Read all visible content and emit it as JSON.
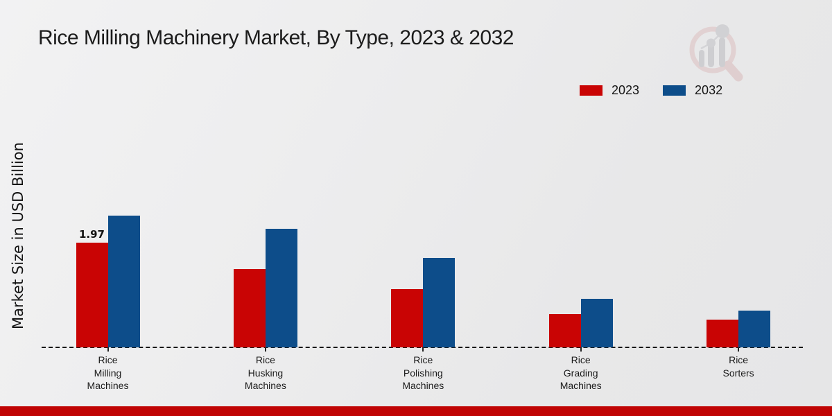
{
  "title": "Rice Milling Machinery Market, By Type, 2023 & 2032",
  "y_axis_label": "Market Size in USD Billion",
  "legend": [
    {
      "label": "2023",
      "color": "#c90404"
    },
    {
      "label": "2032",
      "color": "#0d4d8a"
    }
  ],
  "watermark_name": "market-research-future-logo",
  "footer": {
    "bar_color": "#c00404"
  },
  "chart_data": {
    "type": "bar",
    "title": "Rice Milling Machinery Market, By Type, 2023 & 2032",
    "xlabel": "",
    "ylabel": "Market Size in USD Billion",
    "unit": "USD Billion",
    "categories": [
      "Rice Milling Machines",
      "Rice Husking Machines",
      "Rice Polishing Machines",
      "Rice Grading Machines",
      "Rice Sorters"
    ],
    "categories_multiline": [
      [
        "Rice",
        "Milling",
        "Machines"
      ],
      [
        "Rice",
        "Husking",
        "Machines"
      ],
      [
        "Rice",
        "Polishing",
        "Machines"
      ],
      [
        "Rice",
        "Grading",
        "Machines"
      ],
      [
        "Rice",
        "Sorters"
      ]
    ],
    "series": [
      {
        "name": "2023",
        "color": "#c90404",
        "values": [
          1.97,
          1.47,
          1.1,
          0.63,
          0.52
        ]
      },
      {
        "name": "2032",
        "color": "#0d4d8a",
        "values": [
          2.48,
          2.23,
          1.68,
          0.91,
          0.69
        ]
      }
    ],
    "data_labels": [
      {
        "series": "2023",
        "category_index": 0,
        "text": "1.97"
      }
    ],
    "ylim": [
      0,
      2.8
    ],
    "grid": false,
    "y_axis_ticks_visible": false,
    "baseline_style": "dashed",
    "legend_position": "top-right"
  }
}
